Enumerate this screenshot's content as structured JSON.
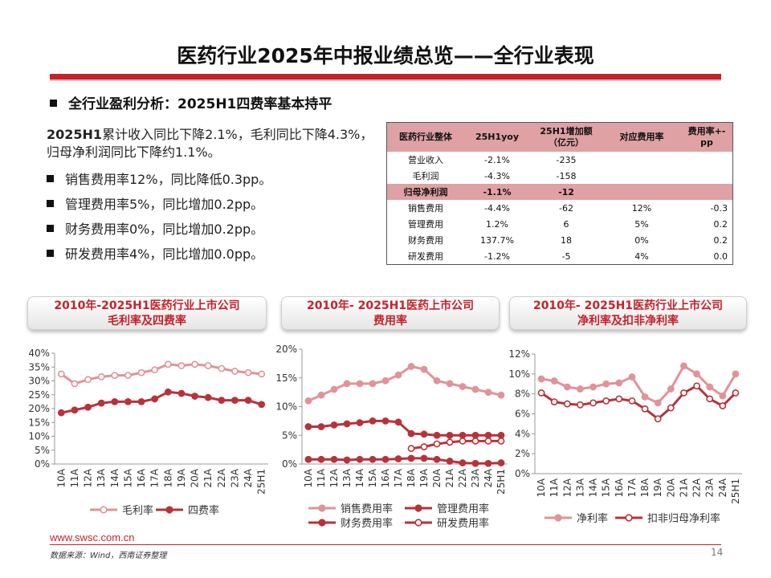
{
  "title": "医药行业2025年中报业绩总览——全行业表现",
  "subheading": "全行业盈利分析：2025H1四费率基本持平",
  "summary": {
    "bold": "2025H1",
    "text": "累计收入同比下降2.1%，毛利同比下降4.3%，归母净利润同比下降约1.1%。"
  },
  "bullets": [
    "销售费用率12%，同比降低0.3pp。",
    "管理费用率5%，同比增加0.2pp。",
    "财务费用率0%，同比增加0.2pp。",
    "研发费用率4%，同比增加0.0pp。"
  ],
  "table": {
    "headers": [
      "医药行业整体",
      "25H1yoy",
      "25H1增加额（亿元）",
      "对应费用率",
      "费用率+-pp"
    ],
    "header_amount_line1": "25H1增加额",
    "header_amount_line2": "（亿元）",
    "rows": [
      {
        "name": "营业收入",
        "yoy": "-2.1%",
        "amount": "-235",
        "rate": "",
        "pp": ""
      },
      {
        "name": "毛利润",
        "yoy": "-4.3%",
        "amount": "-158",
        "rate": "",
        "pp": ""
      },
      {
        "name": "归母净利润",
        "yoy": "-1.1%",
        "amount": "-12",
        "rate": "",
        "pp": ""
      },
      {
        "name": "销售费用",
        "yoy": "-4.4%",
        "amount": "-62",
        "rate": "12%",
        "pp": "-0.3"
      },
      {
        "name": "管理费用",
        "yoy": "1.2%",
        "amount": "6",
        "rate": "5%",
        "pp": "0.2"
      },
      {
        "name": "财务费用",
        "yoy": "137.7%",
        "amount": "18",
        "rate": "0%",
        "pp": "0.2"
      },
      {
        "name": "研发费用",
        "yoy": "-1.2%",
        "amount": "-5",
        "rate": "4%",
        "pp": "0.0"
      }
    ],
    "highlight_row": "归母净利润"
  },
  "panels": [
    {
      "line1": "2010年-2025H1医药行业上市公司",
      "line2": "毛利率及四费率"
    },
    {
      "line1": "2010年- 2025H1医药上市公司",
      "line2": "费用率"
    },
    {
      "line1": "2010年- 2025H1医药行业上市公司",
      "line2": "净利率及扣非净利率"
    }
  ],
  "colors": {
    "accent": "#c4222b",
    "light_series": "#e0939a",
    "dark_series": "#b8323a",
    "table_header": "#dfa1a3"
  },
  "chart_data": [
    {
      "type": "line",
      "title": "2010年-2025H1医药行业上市公司毛利率及四费率",
      "categories": [
        "10A",
        "11A",
        "12A",
        "13A",
        "14A",
        "15A",
        "16A",
        "17A",
        "18A",
        "19A",
        "20A",
        "21A",
        "22A",
        "23A",
        "24A",
        "25H1"
      ],
      "ylim": [
        0,
        40
      ],
      "yticks": [
        0,
        5,
        10,
        15,
        20,
        25,
        30,
        35,
        40
      ],
      "ytick_labels": [
        "0%",
        "5%",
        "10%",
        "15%",
        "20%",
        "25%",
        "30%",
        "35%",
        "40%"
      ],
      "series": [
        {
          "name": "毛利率",
          "style": "open-light",
          "values": [
            32.5,
            29,
            30.5,
            31.5,
            32,
            32,
            33,
            34,
            36,
            35.5,
            36,
            35.5,
            34.5,
            33.5,
            33,
            32.5
          ]
        },
        {
          "name": "四费率",
          "style": "filled-dark",
          "values": [
            18.5,
            19.5,
            20.5,
            22,
            22.5,
            22.5,
            22.5,
            23.5,
            26,
            25.5,
            24.5,
            24,
            23,
            23,
            23,
            21.5
          ]
        }
      ]
    },
    {
      "type": "line",
      "title": "2010年- 2025H1医药上市公司费用率",
      "categories": [
        "10A",
        "11A",
        "12A",
        "13A",
        "14A",
        "15A",
        "16A",
        "17A",
        "18A",
        "19A",
        "20A",
        "21A",
        "22A",
        "23A",
        "24A",
        "25H1"
      ],
      "ylim": [
        0,
        20
      ],
      "yticks": [
        0,
        5,
        10,
        15,
        20
      ],
      "ytick_labels": [
        "0%",
        "5%",
        "10%",
        "15%",
        "20%"
      ],
      "series": [
        {
          "name": "销售费用率",
          "style": "filled-light",
          "values": [
            11,
            12,
            13,
            14,
            14,
            14,
            14.5,
            15.5,
            17,
            16.5,
            14.5,
            14,
            13.5,
            13,
            12.5,
            12
          ]
        },
        {
          "name": "管理费用率",
          "style": "filled-dark",
          "values": [
            6.5,
            6.5,
            6.8,
            7,
            7.2,
            7.5,
            7.5,
            7.3,
            5.3,
            5.2,
            5,
            5,
            5,
            5,
            5,
            5
          ]
        },
        {
          "name": "财务费用率",
          "style": "filled-dark",
          "values": [
            0.8,
            0.8,
            0.8,
            0.7,
            0.8,
            0.8,
            0.8,
            0.9,
            1,
            1,
            0.8,
            0.5,
            0.2,
            0.1,
            0.1,
            0.2
          ]
        },
        {
          "name": "研发费用率",
          "style": "open-dark",
          "values": [
            null,
            null,
            null,
            null,
            null,
            null,
            null,
            null,
            2.7,
            3,
            3.5,
            3.8,
            4,
            4,
            4,
            4
          ]
        }
      ]
    },
    {
      "type": "line",
      "title": "2010年- 2025H1医药行业上市公司净利率及扣非净利率",
      "categories": [
        "10A",
        "11A",
        "12A",
        "13A",
        "14A",
        "15A",
        "16A",
        "17A",
        "18A",
        "19A",
        "20A",
        "21A",
        "22A",
        "23A",
        "24A",
        "25H1"
      ],
      "ylim": [
        0,
        12
      ],
      "yticks": [
        0,
        2,
        4,
        6,
        8,
        10,
        12
      ],
      "ytick_labels": [
        "0%",
        "2%",
        "4%",
        "6%",
        "8%",
        "10%",
        "12%"
      ],
      "series": [
        {
          "name": "净利率",
          "style": "filled-light",
          "values": [
            9.5,
            9.3,
            8.7,
            8.5,
            8.7,
            9,
            9.1,
            9.7,
            7.7,
            7.1,
            8.5,
            10.8,
            10,
            8.7,
            7.8,
            10
          ]
        },
        {
          "name": "扣非归母净利率",
          "style": "open-dark",
          "values": [
            8.1,
            7.2,
            7,
            6.9,
            7.1,
            7.3,
            7.5,
            7.3,
            6.5,
            5.5,
            6.6,
            8.1,
            8.8,
            7.5,
            6.8,
            8.1
          ]
        }
      ]
    }
  ],
  "footer": {
    "url": "www.swsc.com.cn",
    "source": "数据来源：Wind，西南证券整理",
    "page": "14"
  }
}
